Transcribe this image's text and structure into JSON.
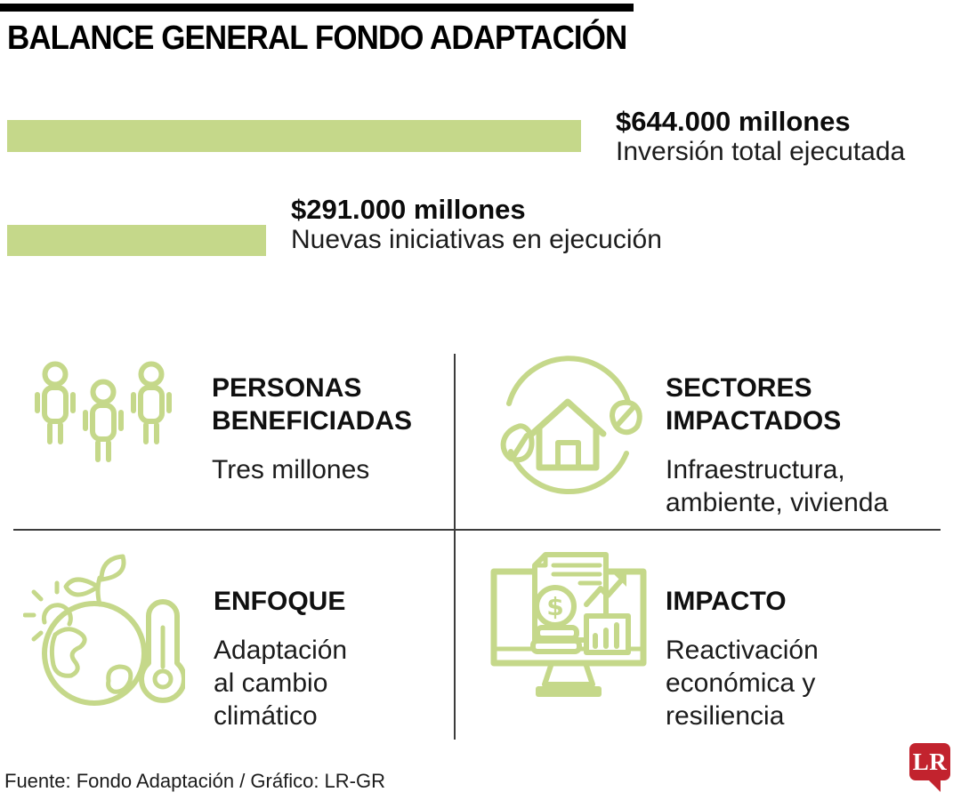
{
  "title": "BALANCE GENERAL FONDO ADAPTACIÓN",
  "chart_data": {
    "type": "bar",
    "orientation": "horizontal",
    "title": "BALANCE GENERAL FONDO ADAPTACIÓN",
    "categories": [
      "Inversión total ejecutada",
      "Nuevas iniciativas en ejecución"
    ],
    "values": [
      644000,
      291000
    ],
    "value_labels": [
      "$644.000 millones",
      "$291.000 millones"
    ],
    "unit": "millones de pesos",
    "xlim": [
      0,
      660000
    ],
    "grid": false,
    "legend": false
  },
  "bars": [
    {
      "value_label": "$644.000 millones",
      "caption": "Inversión total ejecutada"
    },
    {
      "value_label": "$291.000 millones",
      "caption": "Nuevas iniciativas en ejecución"
    }
  ],
  "quadrants": [
    {
      "icon": "people-icon",
      "title": "PERSONAS\nBENEFICIADAS",
      "desc": "Tres millones"
    },
    {
      "icon": "eco-house-icon",
      "title": "SECTORES\nIMPACTADOS",
      "desc": "Infraestructura,\nambiente, vivienda"
    },
    {
      "icon": "climate-globe-icon",
      "title": "ENFOQUE",
      "desc": "Adaptación\nal cambio\nclimático"
    },
    {
      "icon": "economy-monitor-icon",
      "title": "IMPACTO",
      "desc": "Reactivación\neconómica y\nresiliencia"
    }
  ],
  "footer": {
    "source_credit": "Fuente: Fondo Adaptación / Gráfico: LR-GR",
    "logo_text": "LR"
  },
  "colors": {
    "accent_green": "#c5d88a",
    "logo_red": "#c2232e",
    "rule_black": "#000000",
    "divider_gray": "#3c3c3c",
    "text_dark": "#1c1c1c"
  }
}
